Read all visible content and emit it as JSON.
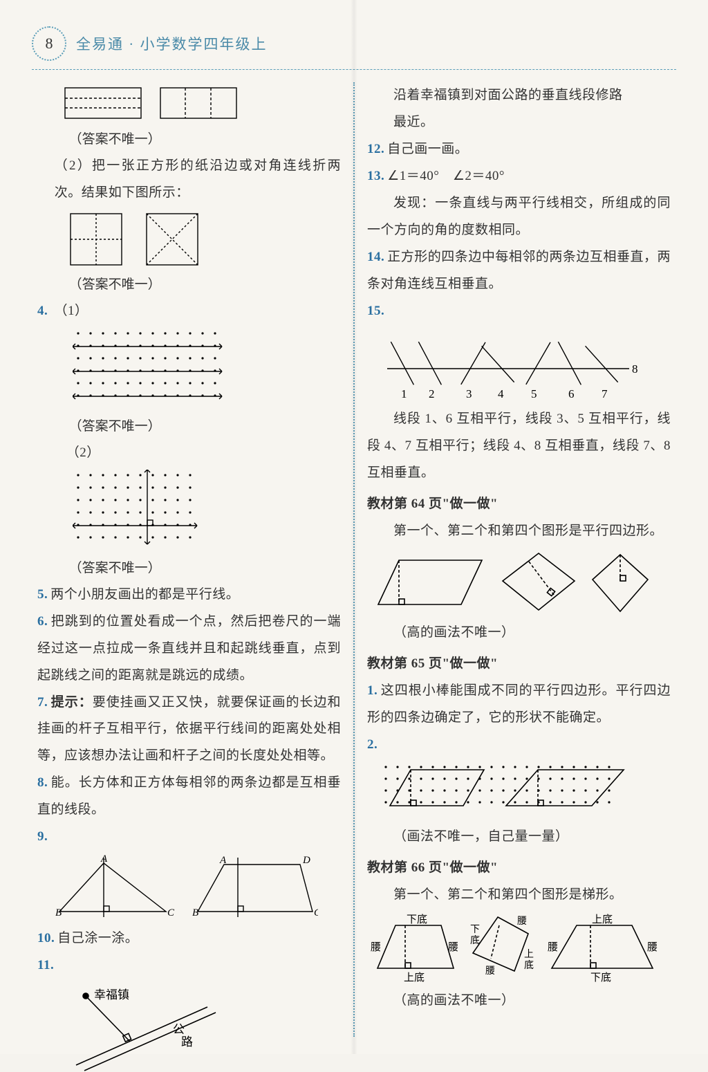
{
  "page_number": "8",
  "book_title": "全易通 · 小学数学四年级上",
  "colors": {
    "accent": "#5a9db8",
    "number": "#2a6fa0",
    "text": "#333333",
    "background": "#f7f5f0",
    "stroke": "#000000"
  },
  "fonts": {
    "body_family": "SimSun/STSong",
    "body_size_pt": 14,
    "title_size_pt": 16
  },
  "left": {
    "note_not_unique": "（答案不唯一）",
    "q2_text": "（2）把一张正方形的纸沿边或对角连线折两次。结果如下图所示：",
    "q4_label": "4.",
    "q4_part1": "（1）",
    "q4_part2": "（2）",
    "q5_label": "5.",
    "q5_text": "两个小朋友画出的都是平行线。",
    "q6_label": "6.",
    "q6_text": "把跳到的位置处看成一个点，然后把卷尺的一端经过这一点拉成一条直线并且和起跳线垂直，点到起跳线之间的距离就是跳远的成绩。",
    "q7_label": "7.",
    "q7_bold": "提示：",
    "q7_text": "要使挂画又正又快，就要保证画的长边和挂画的杆子互相平行，依据平行线间的距离处处相等，应该想办法让画和杆子之间的长度处处相等。",
    "q8_label": "8.",
    "q8_text": "能。长方体和正方体每相邻的两条边都是互相垂直的线段。",
    "q9_label": "9.",
    "q10_label": "10.",
    "q10_text": "自己涂一涂。",
    "q11_label": "11.",
    "q11_town": "幸福镇",
    "q11_road": "公路",
    "triangle_fig": {
      "left": {
        "labels": [
          "A",
          "B",
          "C"
        ]
      },
      "right": {
        "labels": [
          "A",
          "D",
          "B",
          "C"
        ]
      },
      "stroke_width": 1.4
    },
    "rect_fig": {
      "stroke_width": 1.4,
      "dash": "4 3"
    },
    "square_fold_fig": {
      "stroke_width": 1.4,
      "dash": "3 3"
    },
    "dot_grid_fig1": {
      "rows": 6,
      "cols": 12,
      "spacing": 18,
      "dot_r": 1.6
    },
    "dot_grid_fig2": {
      "rows": 6,
      "cols": 10,
      "spacing": 18,
      "dot_r": 1.6
    },
    "road_fig": {
      "stroke_width": 1.6
    }
  },
  "right": {
    "intro_lines": [
      "沿着幸福镇到对面公路的垂直线段修路",
      "最近。"
    ],
    "q12_label": "12.",
    "q12_text": "自己画一画。",
    "q13_label": "13.",
    "q13_expr": "∠1＝40°　∠2＝40°",
    "q13_text": "发现：一条直线与两平行线相交，所组成的同一个方向的角的度数相同。",
    "q14_label": "14.",
    "q14_text": "正方形的四条边中每相邻的两条边互相垂直，两条对角连线互相垂直。",
    "q15_label": "15.",
    "q15_fig": {
      "tick_labels": [
        "1",
        "2",
        "3",
        "4",
        "5",
        "6",
        "7"
      ],
      "axis_end_label": "8",
      "stroke_width": 1.4
    },
    "q15_text": "线段 1、6 互相平行，线段 3、5 互相平行，线段 4、7 互相平行；线段 4、8 互相垂直，线段 7、8 互相垂直。",
    "sec64_title": "教材第 64 页\"做一做\"",
    "sec64_text": "第一个、第二个和第四个图形是平行四边形。",
    "sec64_note": "（高的画法不唯一）",
    "sec65_title": "教材第 65 页\"做一做\"",
    "sec65_q1_label": "1.",
    "sec65_q1_text": "这四根小棒能围成不同的平行四边形。平行四边形的四条边确定了，它的形状不能确定。",
    "sec65_q2_label": "2.",
    "sec65_q2_fig": {
      "rows": 4,
      "cols": 20,
      "spacing": 17,
      "dot_r": 1.6
    },
    "sec65_q2_note": "（画法不唯一，自己量一量）",
    "sec66_title": "教材第 66 页\"做一做\"",
    "sec66_text": "第一个、第二个和第四个图形是梯形。",
    "sec66_labels": {
      "top": "下底",
      "bottom": "上底",
      "side": "腰",
      "top2": "上底",
      "bottom2": "下底"
    },
    "sec66_note": "（高的画法不唯一）",
    "parallelogram_fig": {
      "stroke_width": 1.6,
      "dash": "4 3"
    },
    "trapezoid_fig": {
      "stroke_width": 1.6,
      "dash": "4 3"
    }
  }
}
